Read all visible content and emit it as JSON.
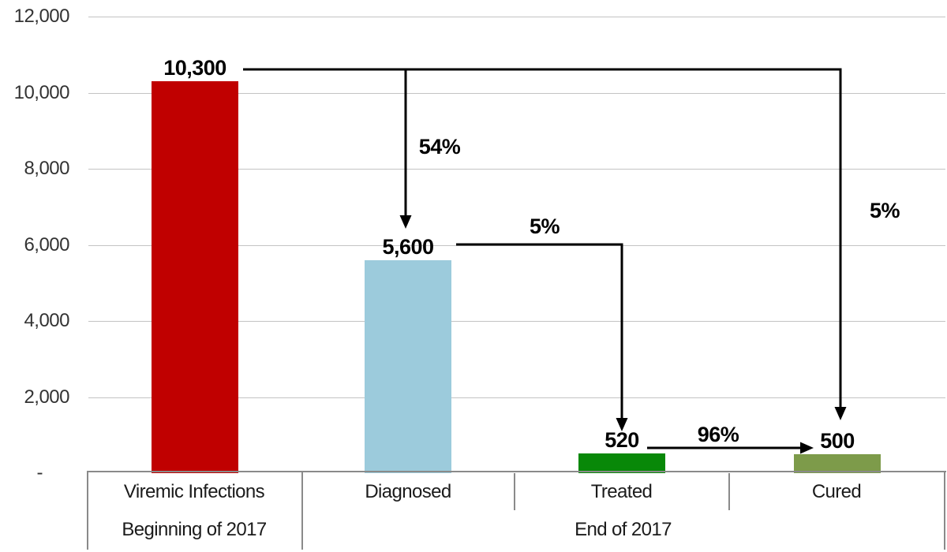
{
  "chart_data": {
    "type": "bar",
    "categories": [
      "Viremic Infections",
      "Diagnosed",
      "Treated",
      "Cured"
    ],
    "values": [
      10300,
      5600,
      520,
      500
    ],
    "value_labels": [
      "10,300",
      "5,600",
      "520",
      "500"
    ],
    "bar_colors": [
      "#c00000",
      "#9ccbdc",
      "#088808",
      "#7d9b4a"
    ],
    "ylim": [
      0,
      12000
    ],
    "y_ticks": [
      {
        "value": 12000,
        "label": "12,000"
      },
      {
        "value": 10000,
        "label": "10,000"
      },
      {
        "value": 8000,
        "label": "8,000"
      },
      {
        "value": 6000,
        "label": "6,000"
      },
      {
        "value": 4000,
        "label": "4,000"
      },
      {
        "value": 2000,
        "label": "2,000"
      },
      {
        "value": 0,
        "label": "-"
      }
    ],
    "grid": true,
    "legend": null,
    "x_groups": [
      {
        "label": "Beginning of 2017",
        "columns": [
          0
        ]
      },
      {
        "label": "End of 2017",
        "columns": [
          1,
          2,
          3
        ]
      }
    ],
    "annotations": [
      {
        "label": "54%",
        "from": "Viremic Infections",
        "to": "Diagnosed"
      },
      {
        "label": "5%",
        "from": "Diagnosed",
        "to": "Treated"
      },
      {
        "label": "5%",
        "from": "Viremic Infections",
        "to": "Cured"
      },
      {
        "label": "96%",
        "from": "Treated",
        "to": "Cured"
      }
    ]
  },
  "palette": {
    "grid": "#c3c3c3",
    "axis_line": "#8a8a8a",
    "arrow": "#000000"
  }
}
